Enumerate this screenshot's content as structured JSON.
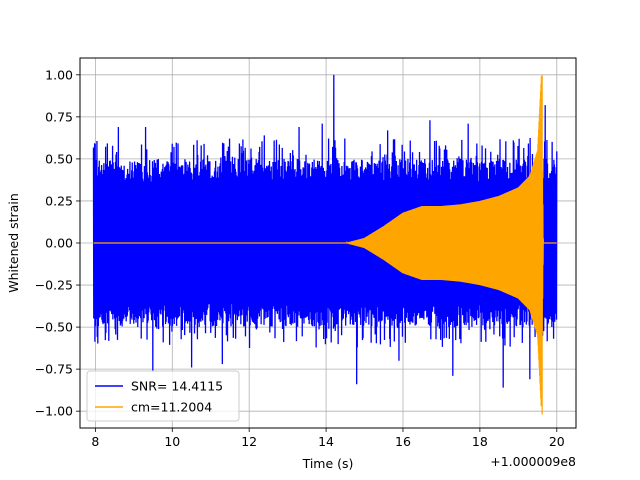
{
  "chart_data": {
    "type": "line",
    "title": "",
    "xlabel": "Time (s)",
    "ylabel": "Whitened strain",
    "x_offset_label": "+1.000009e8",
    "xlim": [
      7.6,
      20.5
    ],
    "ylim": [
      -1.1,
      1.1
    ],
    "x_ticks": [
      8,
      10,
      12,
      14,
      16,
      18,
      20
    ],
    "x_tick_labels": [
      "8",
      "10",
      "12",
      "14",
      "16",
      "18",
      "20"
    ],
    "y_ticks": [
      -1.0,
      -0.75,
      -0.5,
      -0.25,
      0.0,
      0.25,
      0.5,
      0.75,
      1.0
    ],
    "y_tick_labels": [
      "−1.00",
      "−0.75",
      "−0.50",
      "−0.25",
      "0.00",
      "0.25",
      "0.50",
      "0.75",
      "1.00"
    ],
    "grid": true,
    "legend": "lower-left",
    "series": [
      {
        "name": "SNR= 14.4115",
        "color": "#0000ff",
        "kind": "noise",
        "x_range": [
          7.95,
          20.0
        ],
        "typical_amplitude": 0.5,
        "peaks": [
          {
            "x": 8.0,
            "y": 0.59
          },
          {
            "x": 8.6,
            "y": 0.69
          },
          {
            "x": 9.3,
            "y": 0.69
          },
          {
            "x": 9.5,
            "y": -0.76
          },
          {
            "x": 10.0,
            "y": 0.59
          },
          {
            "x": 10.5,
            "y": -0.74
          },
          {
            "x": 11.3,
            "y": -0.72
          },
          {
            "x": 12.4,
            "y": 0.64
          },
          {
            "x": 13.3,
            "y": 0.69
          },
          {
            "x": 13.9,
            "y": 0.71
          },
          {
            "x": 14.2,
            "y": 1.0
          },
          {
            "x": 14.8,
            "y": -0.84
          },
          {
            "x": 15.6,
            "y": 0.67
          },
          {
            "x": 15.9,
            "y": -0.7
          },
          {
            "x": 16.7,
            "y": 0.73
          },
          {
            "x": 17.3,
            "y": -0.79
          },
          {
            "x": 17.7,
            "y": 0.71
          },
          {
            "x": 18.6,
            "y": -0.86
          },
          {
            "x": 19.3,
            "y": -0.81
          },
          {
            "x": 19.7,
            "y": 0.82
          }
        ]
      },
      {
        "name": "cm=11.2004",
        "color": "#ffa500",
        "kind": "chirp",
        "x_range": [
          7.95,
          20.0
        ],
        "envelope": [
          {
            "x": 7.95,
            "y": 0.0
          },
          {
            "x": 14.5,
            "y": 0.0
          },
          {
            "x": 15.0,
            "y": 0.03
          },
          {
            "x": 15.5,
            "y": 0.1
          },
          {
            "x": 16.0,
            "y": 0.18
          },
          {
            "x": 16.5,
            "y": 0.22
          },
          {
            "x": 17.0,
            "y": 0.22
          },
          {
            "x": 17.5,
            "y": 0.23
          },
          {
            "x": 18.0,
            "y": 0.25
          },
          {
            "x": 18.5,
            "y": 0.28
          },
          {
            "x": 19.0,
            "y": 0.33
          },
          {
            "x": 19.3,
            "y": 0.4
          },
          {
            "x": 19.5,
            "y": 0.55
          },
          {
            "x": 19.6,
            "y": 1.0
          },
          {
            "x": 19.65,
            "y": 0.0
          },
          {
            "x": 20.0,
            "y": 0.0
          }
        ]
      }
    ]
  }
}
